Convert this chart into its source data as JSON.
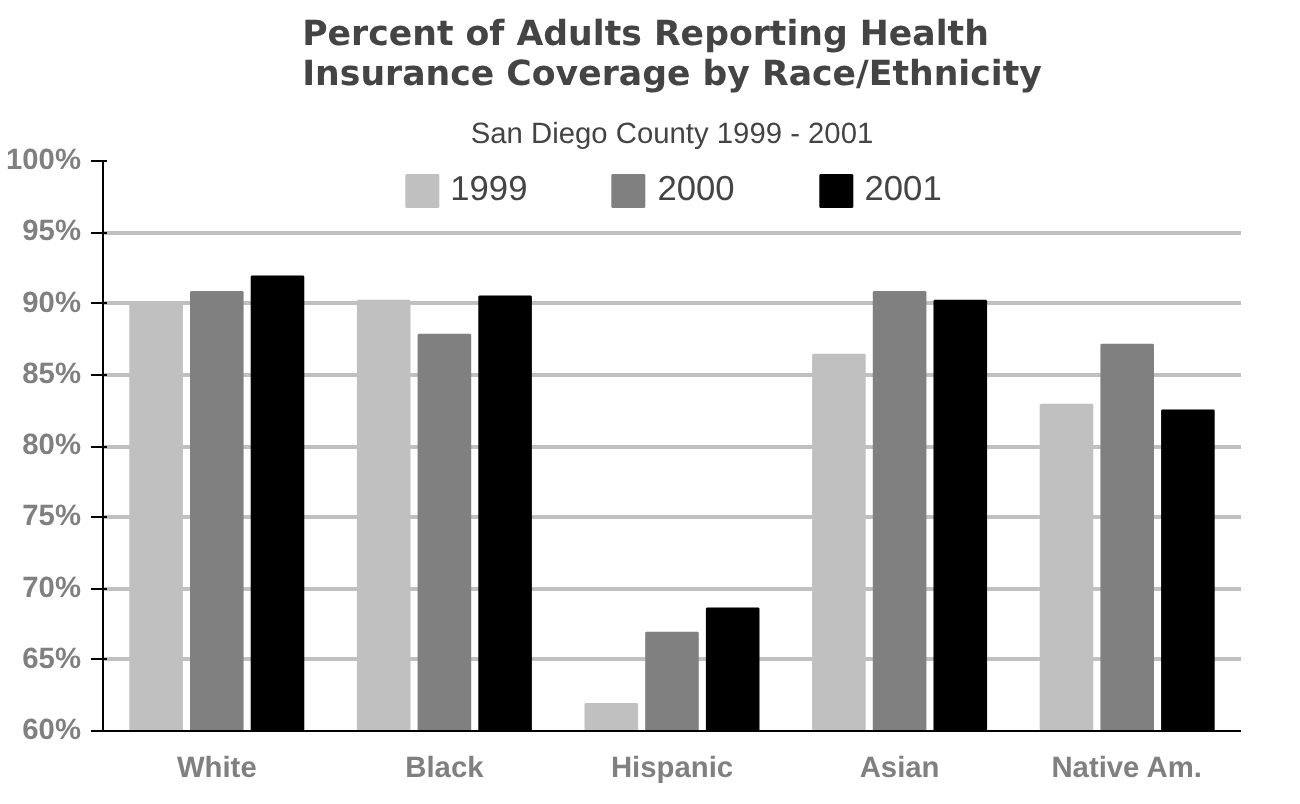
{
  "chart_data": {
    "type": "bar",
    "title": "Percent of Adults Reporting Health Insurance Coverage by Race/Ethnicity",
    "subtitle": "San Diego County 1999 - 2001",
    "categories": [
      "White",
      "Black",
      "Hispanic",
      "Asian",
      "Native Am."
    ],
    "series": [
      {
        "name": "1999",
        "color": "#c0c0c0",
        "values": [
          90.0,
          90.2,
          61.9,
          86.4,
          82.9
        ]
      },
      {
        "name": "2000",
        "color": "#808080",
        "values": [
          90.8,
          87.8,
          66.9,
          90.8,
          87.1
        ]
      },
      {
        "name": "2001",
        "color": "#000000",
        "values": [
          91.9,
          90.5,
          68.6,
          90.2,
          82.5
        ]
      }
    ],
    "ylim": [
      60,
      100
    ],
    "yticks": [
      {
        "value": 60,
        "label": "60%"
      },
      {
        "value": 65,
        "label": "65%"
      },
      {
        "value": 70,
        "label": "70%"
      },
      {
        "value": 75,
        "label": "75%"
      },
      {
        "value": 80,
        "label": "80%"
      },
      {
        "value": 85,
        "label": "85%"
      },
      {
        "value": 90,
        "label": "90%"
      },
      {
        "value": 95,
        "label": "95%"
      },
      {
        "value": 100,
        "label": "100%"
      }
    ],
    "grid": "y",
    "legend": "top"
  }
}
